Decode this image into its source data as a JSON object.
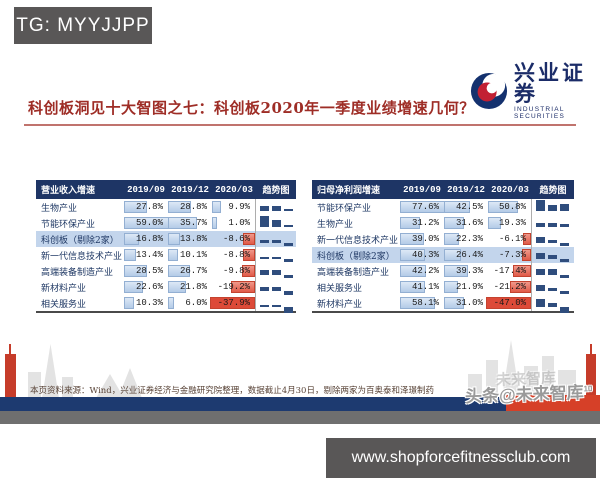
{
  "banner": {
    "tg_label": "TG: MYYJJPP"
  },
  "logo": {
    "name": "兴业证券",
    "subtitle": "INDUSTRIAL SECURITIES"
  },
  "title": "科创板洞见十大智图之七：科创板2020年一季度业绩增速几何？",
  "chart_data": [
    {
      "type": "table",
      "title": "营业收入增速",
      "columns": [
        "2019/09",
        "2019/12",
        "2020/03",
        "趋势图"
      ],
      "unit": "%",
      "rows": [
        {
          "name": "生物产业",
          "values": [
            27.8,
            28.8,
            9.9
          ],
          "highlight": false
        },
        {
          "name": "节能环保产业",
          "values": [
            59.0,
            35.7,
            1.0
          ],
          "highlight": false
        },
        {
          "name": "科创板（剔除2家）",
          "values": [
            16.8,
            13.8,
            -8.6
          ],
          "highlight": true
        },
        {
          "name": "新一代信息技术产业",
          "values": [
            13.4,
            10.1,
            -8.8
          ],
          "highlight": false
        },
        {
          "name": "高端装备制造产业",
          "values": [
            28.5,
            26.7,
            -9.8
          ],
          "highlight": false
        },
        {
          "name": "新材料产业",
          "values": [
            22.6,
            21.8,
            -19.2
          ],
          "highlight": false
        },
        {
          "name": "相关服务业",
          "values": [
            10.3,
            6.0,
            -37.9
          ],
          "highlight": false
        }
      ]
    },
    {
      "type": "table",
      "title": "归母净利润增速",
      "columns": [
        "2019/09",
        "2019/12",
        "2020/03",
        "趋势图"
      ],
      "unit": "%",
      "rows": [
        {
          "name": "节能环保产业",
          "values": [
            77.6,
            42.5,
            50.8
          ],
          "highlight": false
        },
        {
          "name": "生物产业",
          "values": [
            31.2,
            31.6,
            19.3
          ],
          "highlight": false
        },
        {
          "name": "新一代信息技术产业",
          "values": [
            39.0,
            22.3,
            -6.1
          ],
          "highlight": false
        },
        {
          "name": "科创板（剔除2家）",
          "values": [
            40.3,
            26.4,
            -7.3
          ],
          "highlight": true
        },
        {
          "name": "高端装备制造产业",
          "values": [
            42.2,
            39.3,
            -17.4
          ],
          "highlight": false
        },
        {
          "name": "相关服务业",
          "values": [
            41.1,
            21.9,
            -21.2
          ],
          "highlight": false
        },
        {
          "name": "新材料产业",
          "values": [
            58.1,
            31.0,
            -47.0
          ],
          "highlight": false
        }
      ]
    }
  ],
  "footer": {
    "source_note": "本页资料来源：Wind，兴业证券经济与金融研究院整理，数据截止4月30日，剔除两家为百奥泰和泽璟制药"
  },
  "watermark": {
    "ghost": "未来智库",
    "text": "头条@未来智库",
    "superscript": "10"
  },
  "bottom_banner": {
    "url": "www.shopforcefitnessclub.com"
  },
  "colors": {
    "header_navy": "#1e3565",
    "highlight_row": "#c3d5ec",
    "positive_bar": "#b4cbe7",
    "negative_bar": "#e05a48",
    "title_red": "#9e2d26",
    "footer_bar_blue": "#1d3a70",
    "footer_bar_red": "#d64028",
    "footer_bar_gray": "#6f6f6f"
  }
}
